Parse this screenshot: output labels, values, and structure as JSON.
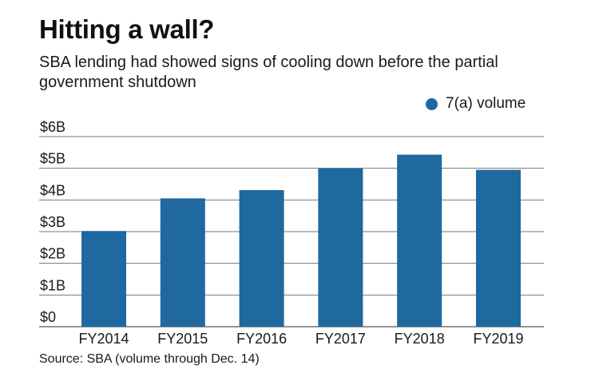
{
  "header": {
    "title": "Hitting a wall?",
    "subtitle": "SBA lending had showed signs of cooling down before the partial government shutdown"
  },
  "footer": {
    "source": "Source: SBA (volume through Dec. 14)"
  },
  "colors": {
    "bar": "#1f68a0",
    "grid": "#777777",
    "axis": "#555555"
  },
  "chart_data": {
    "type": "bar",
    "title": "Hitting a wall?",
    "subtitle": "SBA lending had showed signs of cooling down before the partial government shutdown",
    "xlabel": "",
    "ylabel": "",
    "categories": [
      "FY2014",
      "FY2015",
      "FY2016",
      "FY2017",
      "FY2018",
      "FY2019"
    ],
    "series": [
      {
        "name": "7(a) volume",
        "values": [
          3.02,
          4.05,
          4.31,
          5.0,
          5.43,
          4.95
        ]
      }
    ],
    "unit": "billions USD",
    "ylim": [
      0,
      6
    ],
    "yticks": [
      0,
      1,
      2,
      3,
      4,
      5,
      6
    ],
    "ytick_labels": [
      "$0",
      "$1B",
      "$2B",
      "$3B",
      "$4B",
      "$5B",
      "$6B"
    ],
    "grid": true,
    "legend": {
      "position": "top-right",
      "entries": [
        "7(a) volume"
      ]
    },
    "source": "Source: SBA (volume through Dec. 14)"
  }
}
